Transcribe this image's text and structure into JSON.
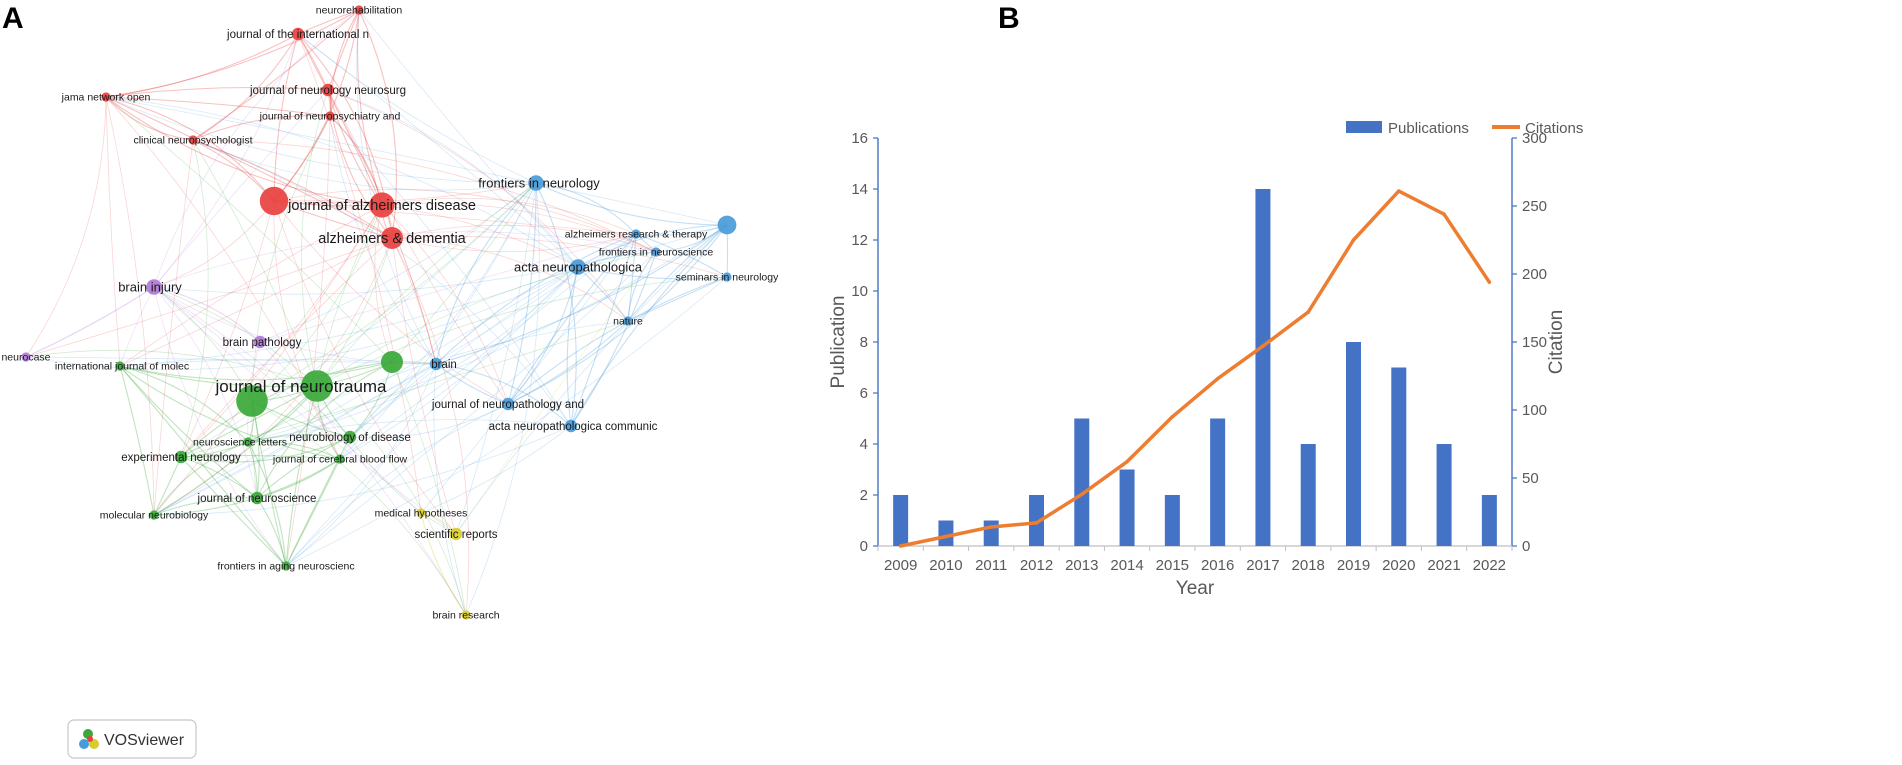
{
  "panels": {
    "a": "A",
    "b": "B"
  },
  "watermark": {
    "label": "VOSviewer"
  },
  "network": {
    "colors": {
      "red": "#e8413f",
      "green": "#3aa83a",
      "blue": "#4a9bd9",
      "purple": "#b07ad6",
      "yellow": "#d8cc2c"
    },
    "nodes": [
      {
        "label": "neurorehabilitation",
        "cluster": "red",
        "weight": 1
      },
      {
        "label": "journal of the international n",
        "cluster": "red",
        "weight": 2
      },
      {
        "label": "jama network open",
        "cluster": "red",
        "weight": 1
      },
      {
        "label": "journal of neurology neurosurg",
        "cluster": "red",
        "weight": 2
      },
      {
        "label": "journal of neuropsychiatry and",
        "cluster": "red",
        "weight": 1
      },
      {
        "label": "clinical neuropsychologist",
        "cluster": "red",
        "weight": 1
      },
      {
        "label": "journal of alzheimers disease",
        "cluster": "red",
        "weight": 6
      },
      {
        "label": "alzheimers & dementia",
        "cluster": "red",
        "weight": 5
      },
      {
        "label": "frontiers in neurology",
        "cluster": "blue",
        "weight": 3
      },
      {
        "label": "alzheimers research & therapy",
        "cluster": "blue",
        "weight": 1
      },
      {
        "label": "frontiers in neuroscience",
        "cluster": "blue",
        "weight": 1
      },
      {
        "label": "acta neuropathologica",
        "cluster": "blue",
        "weight": 3
      },
      {
        "label": "seminars in neurology",
        "cluster": "blue",
        "weight": 1
      },
      {
        "label": "nature",
        "cluster": "blue",
        "weight": 1
      },
      {
        "label": "brain",
        "cluster": "blue",
        "weight": 2
      },
      {
        "label": "journal of neuropathology and",
        "cluster": "blue",
        "weight": 2
      },
      {
        "label": "acta neuropathologica communic",
        "cluster": "blue",
        "weight": 2
      },
      {
        "label": "brain injury",
        "cluster": "purple",
        "weight": 3
      },
      {
        "label": "brain pathology",
        "cluster": "purple",
        "weight": 2
      },
      {
        "label": "neurocase",
        "cluster": "purple",
        "weight": 1
      },
      {
        "label": "international journal of molec",
        "cluster": "green",
        "weight": 1
      },
      {
        "label": "journal of neurotrauma",
        "cluster": "green",
        "weight": 8
      },
      {
        "label": "neuroscience letters",
        "cluster": "green",
        "weight": 1
      },
      {
        "label": "neurobiology of disease",
        "cluster": "green",
        "weight": 2
      },
      {
        "label": "experimental neurology",
        "cluster": "green",
        "weight": 2
      },
      {
        "label": "journal of cerebral blood flow",
        "cluster": "green",
        "weight": 1
      },
      {
        "label": "journal of neuroscience",
        "cluster": "green",
        "weight": 2
      },
      {
        "label": "molecular neurobiology",
        "cluster": "green",
        "weight": 1
      },
      {
        "label": "frontiers in aging neuroscienc",
        "cluster": "green",
        "weight": 1
      },
      {
        "label": "medical hypotheses",
        "cluster": "yellow",
        "weight": 1
      },
      {
        "label": "scientific reports",
        "cluster": "yellow",
        "weight": 2
      },
      {
        "label": "brain research",
        "cluster": "yellow",
        "weight": 1
      }
    ]
  },
  "chart_data": {
    "type": "bar",
    "categories": [
      "2009",
      "2010",
      "2011",
      "2012",
      "2013",
      "2014",
      "2015",
      "2016",
      "2017",
      "2018",
      "2019",
      "2020",
      "2021",
      "2022"
    ],
    "series": [
      {
        "name": "Publications",
        "kind": "bar",
        "axis": "left",
        "color": "#4472c4",
        "values": [
          2,
          1,
          1,
          2,
          5,
          3,
          2,
          5,
          14,
          4,
          8,
          7,
          4,
          2
        ]
      },
      {
        "name": "Citations",
        "kind": "line",
        "axis": "right",
        "color": "#ed7d31",
        "values": [
          0,
          7,
          14,
          17,
          38,
          62,
          95,
          123,
          147,
          172,
          225,
          261,
          244,
          194
        ]
      }
    ],
    "xlabel": "Year",
    "ylabel": "Publication",
    "y2label": "Citation",
    "ylim": [
      0,
      16
    ],
    "y2lim": [
      0,
      300
    ],
    "yticks": [
      "0",
      "2",
      "4",
      "6",
      "8",
      "10",
      "12",
      "14",
      "16"
    ],
    "y2ticks": [
      "0",
      "50",
      "100",
      "150",
      "200",
      "250",
      "300"
    ],
    "legend": "top-center",
    "grid": false
  }
}
